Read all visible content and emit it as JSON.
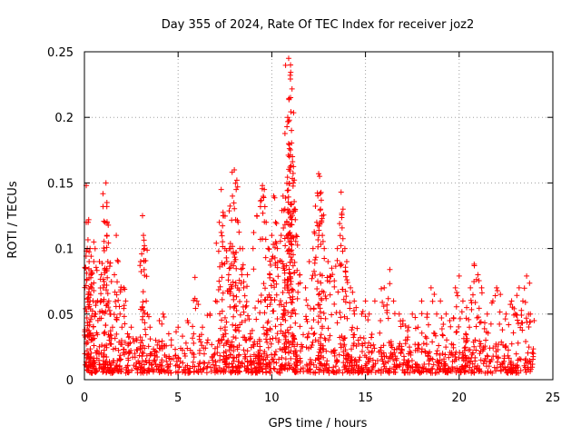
{
  "chart_data": {
    "type": "scatter",
    "title": "Day 355 of 2024, Rate Of TEC Index for receiver joz2",
    "xlabel": "GPS time / hours",
    "ylabel": "ROTI / TECUs",
    "xlim": [
      0,
      25
    ],
    "ylim": [
      0,
      0.25
    ],
    "xticks": [
      0,
      5,
      10,
      15,
      20,
      25
    ],
    "yticks": [
      0,
      0.05,
      0.1,
      0.15,
      0.2,
      0.25
    ],
    "xtick_labels": [
      "0",
      "5",
      "10",
      "15",
      "20",
      "25"
    ],
    "ytick_labels": [
      "0",
      "0.05",
      "0.1",
      "0.15",
      "0.2",
      "0.25"
    ],
    "grid": true,
    "marker": "+",
    "color": "#ff0000",
    "series": [
      {
        "name": "ROTI",
        "x": [
          0.05,
          0.1,
          0.1,
          0.15,
          0.2,
          0.2,
          0.25,
          0.3,
          0.3,
          0.35,
          0.4,
          0.5,
          0.5,
          0.6,
          0.7,
          0.8,
          0.9,
          1.0,
          1.1,
          1.15,
          1.2,
          1.2,
          1.25,
          1.3,
          1.4,
          1.5,
          1.6,
          1.7,
          1.8,
          1.9,
          2.0,
          2.1,
          2.2,
          2.3,
          2.5,
          2.8,
          3.0,
          3.1,
          3.15,
          3.2,
          3.3,
          3.5,
          3.8,
          4.0,
          4.2,
          4.5,
          5.0,
          5.5,
          5.9,
          6.0,
          6.3,
          6.7,
          7.0,
          7.2,
          7.3,
          7.4,
          7.5,
          7.6,
          7.7,
          7.8,
          7.9,
          8.0,
          8.1,
          8.2,
          8.3,
          8.4,
          8.5,
          8.7,
          9.0,
          9.2,
          9.5,
          9.6,
          9.7,
          9.8,
          9.9,
          10.0,
          10.1,
          10.2,
          10.3,
          10.5,
          10.6,
          10.7,
          10.8,
          10.85,
          10.9,
          10.9,
          11.0,
          11.0,
          11.05,
          11.1,
          11.15,
          11.2,
          11.3,
          11.5,
          11.8,
          12.0,
          12.2,
          12.4,
          12.5,
          12.55,
          12.6,
          12.7,
          12.8,
          13.0,
          13.2,
          13.5,
          13.7,
          13.8,
          13.9,
          14.0,
          14.2,
          14.4,
          14.5,
          14.8,
          15.0,
          15.2,
          15.5,
          15.8,
          16.0,
          16.3,
          16.5,
          16.8,
          17.0,
          17.3,
          17.5,
          17.8,
          18.0,
          18.3,
          18.5,
          18.8,
          19.0,
          19.3,
          19.5,
          19.8,
          20.0,
          20.2,
          20.4,
          20.6,
          20.8,
          21.0,
          21.2,
          21.5,
          21.8,
          22.0,
          22.2,
          22.5,
          22.8,
          23.0,
          23.2,
          23.4,
          23.6,
          23.8,
          24.0
        ],
        "y": [
          0.085,
          0.148,
          0.12,
          0.1,
          0.065,
          0.12,
          0.09,
          0.06,
          0.1,
          0.08,
          0.07,
          0.105,
          0.09,
          0.05,
          0.06,
          0.09,
          0.08,
          0.07,
          0.12,
          0.15,
          0.135,
          0.11,
          0.09,
          0.06,
          0.05,
          0.04,
          0.08,
          0.11,
          0.09,
          0.05,
          0.04,
          0.07,
          0.06,
          0.035,
          0.04,
          0.03,
          0.09,
          0.125,
          0.11,
          0.1,
          0.06,
          0.04,
          0.03,
          0.045,
          0.05,
          0.035,
          0.04,
          0.045,
          0.078,
          0.06,
          0.04,
          0.05,
          0.06,
          0.12,
          0.145,
          0.125,
          0.1,
          0.09,
          0.08,
          0.1,
          0.14,
          0.16,
          0.145,
          0.12,
          0.1,
          0.08,
          0.07,
          0.08,
          0.1,
          0.125,
          0.148,
          0.145,
          0.12,
          0.1,
          0.08,
          0.11,
          0.14,
          0.12,
          0.1,
          0.11,
          0.14,
          0.13,
          0.12,
          0.2,
          0.18,
          0.245,
          0.24,
          0.215,
          0.19,
          0.17,
          0.15,
          0.13,
          0.11,
          0.08,
          0.07,
          0.09,
          0.1,
          0.12,
          0.157,
          0.155,
          0.13,
          0.11,
          0.1,
          0.09,
          0.085,
          0.1,
          0.143,
          0.13,
          0.1,
          0.09,
          0.07,
          0.06,
          0.055,
          0.05,
          0.06,
          0.05,
          0.06,
          0.045,
          0.07,
          0.084,
          0.06,
          0.05,
          0.045,
          0.04,
          0.05,
          0.04,
          0.06,
          0.05,
          0.07,
          0.05,
          0.06,
          0.05,
          0.045,
          0.07,
          0.079,
          0.06,
          0.055,
          0.07,
          0.088,
          0.08,
          0.07,
          0.05,
          0.06,
          0.07,
          0.065,
          0.05,
          0.06,
          0.05,
          0.07,
          0.06,
          0.079,
          0.05,
          0.045
        ],
        "baseline_band": [
          0.005,
          0.03
        ]
      }
    ]
  }
}
